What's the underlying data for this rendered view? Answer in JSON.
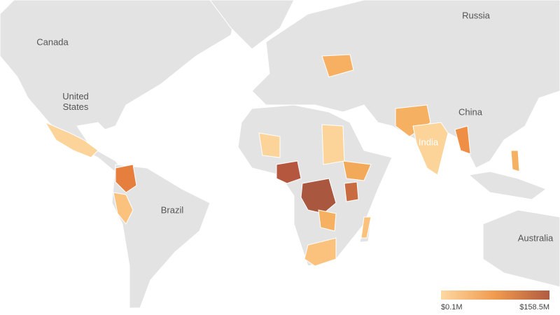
{
  "map_labels": [
    "Russia",
    "Canada",
    "United States",
    "China",
    "India",
    "Brazil",
    "Australia"
  ],
  "legend": {
    "min": {
      "value": 0.1,
      "label": "$0.1M"
    },
    "max": {
      "value": 158.5,
      "label": "$158.5M"
    },
    "colors": [
      "#fdd8a2",
      "#f09a4e",
      "#b15b41"
    ]
  }
}
